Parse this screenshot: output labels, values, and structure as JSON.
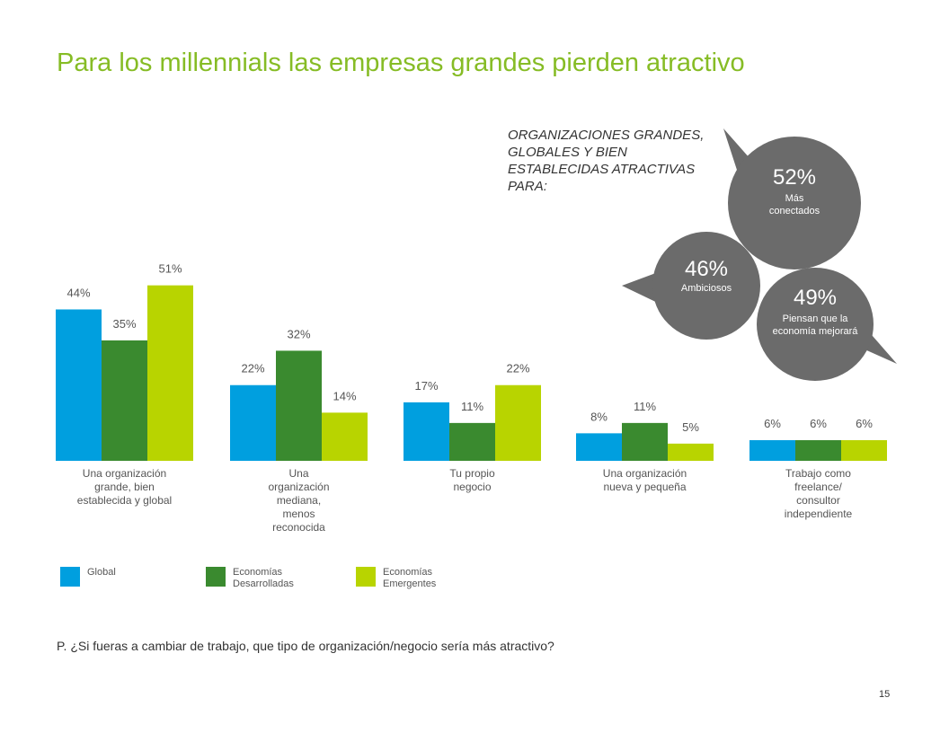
{
  "slide": {
    "title": "Para los millennials las empresas grandes pierden atractivo",
    "question": "P. ¿Si fueras a cambiar de trabajo, que tipo de organización/negocio sería más atractivo?",
    "page_number": "15"
  },
  "callout": {
    "heading": "ORGANIZACIONES GRANDES, GLOBALES Y BIEN ESTABLECIDAS ATRACTIVAS PARA:",
    "bubbles": [
      {
        "pct": "52%",
        "label": "Más conectados"
      },
      {
        "pct": "46%",
        "label": "Ambiciosos"
      },
      {
        "pct": "49%",
        "label": "Piensan que la economía mejorará"
      }
    ],
    "bubble_color": "#6b6b6b"
  },
  "chart_data": {
    "type": "bar",
    "categories": [
      "Una organización grande, bien establecida y global",
      "Una organización mediana, menos reconocida",
      "Tu propio negocio",
      "Una organización nueva y pequeña",
      "Trabajo como freelance/ consultor independiente"
    ],
    "series": [
      {
        "name": "Global",
        "color": "#009fdf",
        "values": [
          44,
          22,
          17,
          8,
          6
        ]
      },
      {
        "name": "Economías Desarrolladas",
        "color": "#3a8a2f",
        "values": [
          35,
          32,
          11,
          11,
          6
        ]
      },
      {
        "name": "Economías Emergentes",
        "color": "#b8d400",
        "values": [
          51,
          14,
          22,
          5,
          6
        ]
      }
    ],
    "value_suffix": "%",
    "ylim": [
      0,
      60
    ],
    "grid": false,
    "legend_position": "bottom-left"
  }
}
